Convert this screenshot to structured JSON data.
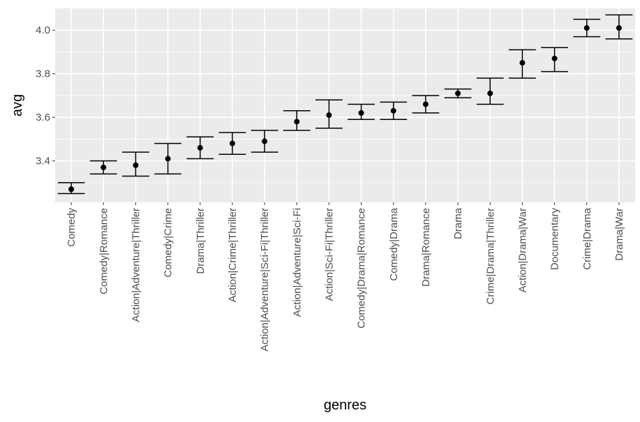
{
  "chart_data": {
    "type": "errorbar",
    "xlabel": "genres",
    "ylabel": "avg",
    "categories": [
      "Comedy",
      "Comedy|Romance",
      "Action|Adventure|Thriller",
      "Comedy|Crime",
      "Drama|Thriller",
      "Action|Crime|Thriller",
      "Action|Adventure|Sci-Fi|Thriller",
      "Action|Adventure|Sci-Fi",
      "Action|Sci-Fi|Thriller",
      "Comedy|Drama|Romance",
      "Comedy|Drama",
      "Drama|Romance",
      "Drama",
      "Crime|Drama|Thriller",
      "Action|Drama|War",
      "Documentary",
      "Crime|Drama",
      "Drama|War"
    ],
    "values": [
      3.27,
      3.37,
      3.38,
      3.41,
      3.46,
      3.48,
      3.49,
      3.58,
      3.61,
      3.62,
      3.63,
      3.66,
      3.71,
      3.71,
      3.85,
      3.87,
      4.01,
      4.01
    ],
    "lower": [
      3.25,
      3.34,
      3.33,
      3.34,
      3.41,
      3.43,
      3.44,
      3.54,
      3.55,
      3.59,
      3.59,
      3.62,
      3.69,
      3.66,
      3.78,
      3.81,
      3.97,
      3.96
    ],
    "upper": [
      3.3,
      3.4,
      3.44,
      3.48,
      3.51,
      3.53,
      3.54,
      3.63,
      3.68,
      3.66,
      3.67,
      3.7,
      3.73,
      3.78,
      3.91,
      3.92,
      4.05,
      4.07
    ],
    "yticks": [
      "3.4",
      "3.6",
      "3.8",
      "4.0"
    ],
    "ylim": [
      3.21,
      4.1
    ],
    "grid": true,
    "colors": {
      "panel": "#ebebeb",
      "grid_major": "#ffffff",
      "point": "#000000",
      "tick_text": "#4d4d4d",
      "axis_title": "#000000"
    }
  }
}
